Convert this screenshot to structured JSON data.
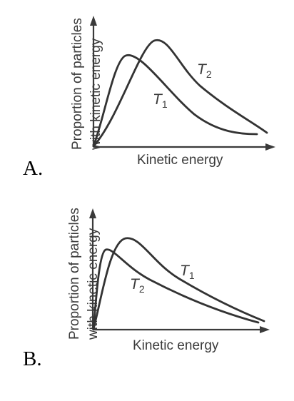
{
  "diagrams": [
    {
      "option_label": "A.",
      "y_axis_label": [
        "Proportion of particles",
        "with kinetic energy"
      ],
      "x_axis_label": "Kinetic energy",
      "curve_labels": [
        {
          "main": "T",
          "sub": "1"
        },
        {
          "main": "T",
          "sub": "2"
        }
      ]
    },
    {
      "option_label": "B.",
      "y_axis_label": [
        "Proportion of particles",
        "with kinetic energy"
      ],
      "x_axis_label": "Kinetic energy",
      "curve_labels": [
        {
          "main": "T",
          "sub": "2"
        },
        {
          "main": "T",
          "sub": "1"
        }
      ]
    }
  ],
  "colors": {
    "line": "#333333",
    "text": "#3a3a3a"
  }
}
